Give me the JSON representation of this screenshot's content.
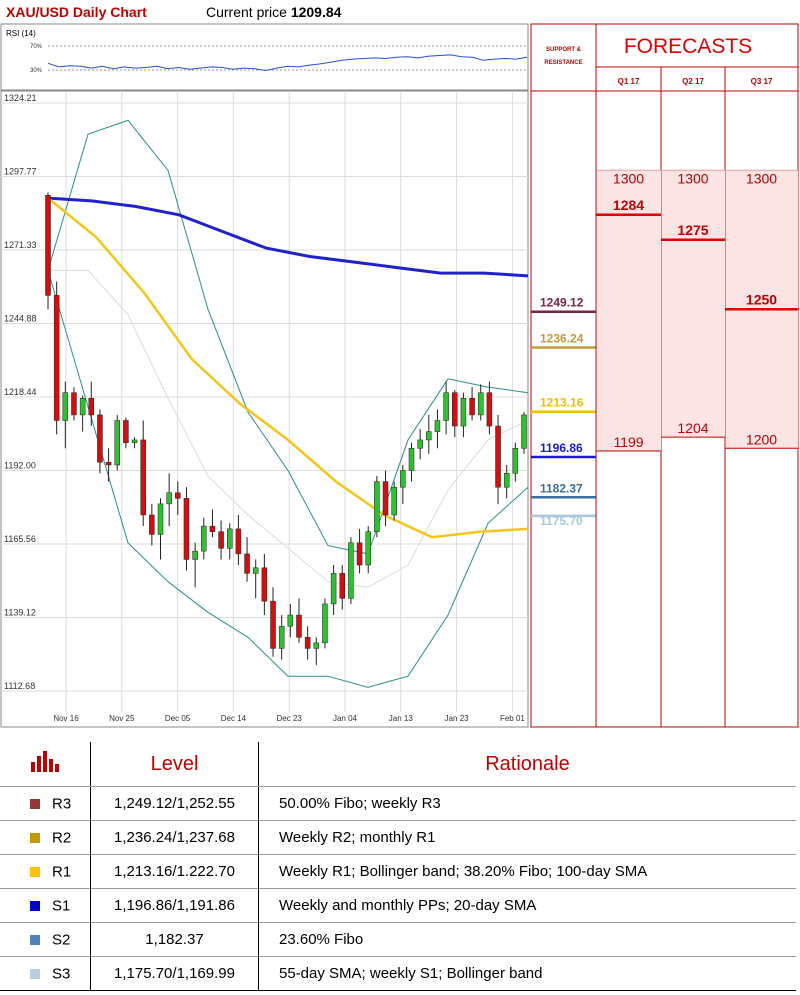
{
  "header": {
    "title": "XAU/USD Daily Chart",
    "price_label": "Current price",
    "price_value": "1209.84"
  },
  "rsi": {
    "label": "RSI (14)",
    "level_high": "70%",
    "level_low": "30%",
    "values": [
      58,
      52,
      54,
      53,
      50,
      53,
      49,
      52,
      50,
      51,
      53,
      49,
      51,
      48,
      50,
      52,
      51,
      48,
      50,
      49,
      46,
      50,
      53,
      52,
      55,
      57,
      60,
      63,
      65,
      66,
      67,
      66,
      68,
      69,
      67,
      70,
      71,
      72,
      69,
      68,
      63,
      65,
      66,
      65,
      68
    ]
  },
  "chart_data": {
    "type": "candlestick",
    "y_ticks": [
      "1324.21",
      "1297.77",
      "1271.33",
      "1244.88",
      "1218.44",
      "1192.00",
      "1165.56",
      "1139.12",
      "1112.68"
    ],
    "ylim": [
      1112.68,
      1324.21
    ],
    "x_ticks": [
      "Nov 16",
      "Nov 25",
      "Dec 05",
      "Dec 14",
      "Dec 23",
      "Jan 04",
      "Jan 13",
      "Jan 23",
      "Feb 01"
    ],
    "candles": [
      [
        1291,
        1292,
        1250,
        1255
      ],
      [
        1255,
        1260,
        1205,
        1210
      ],
      [
        1210,
        1224,
        1200,
        1220
      ],
      [
        1220,
        1222,
        1210,
        1212
      ],
      [
        1212,
        1219,
        1206,
        1218
      ],
      [
        1218,
        1224,
        1208,
        1212
      ],
      [
        1212,
        1214,
        1191,
        1195
      ],
      [
        1195,
        1200,
        1188,
        1194
      ],
      [
        1194,
        1212,
        1192,
        1210
      ],
      [
        1210,
        1211,
        1200,
        1202
      ],
      [
        1202,
        1204,
        1200,
        1203
      ],
      [
        1203,
        1210,
        1172,
        1176
      ],
      [
        1176,
        1180,
        1165,
        1169
      ],
      [
        1169,
        1182,
        1160,
        1180
      ],
      [
        1180,
        1191,
        1172,
        1184
      ],
      [
        1184,
        1188,
        1176,
        1182
      ],
      [
        1182,
        1186,
        1156,
        1160
      ],
      [
        1160,
        1166,
        1150,
        1163
      ],
      [
        1163,
        1175,
        1160,
        1172
      ],
      [
        1172,
        1178,
        1168,
        1170
      ],
      [
        1170,
        1174,
        1160,
        1164
      ],
      [
        1164,
        1173,
        1160,
        1171
      ],
      [
        1171,
        1176,
        1158,
        1162
      ],
      [
        1162,
        1168,
        1152,
        1155
      ],
      [
        1155,
        1160,
        1146,
        1157
      ],
      [
        1157,
        1162,
        1140,
        1145
      ],
      [
        1145,
        1150,
        1125,
        1128
      ],
      [
        1128,
        1140,
        1124,
        1136
      ],
      [
        1136,
        1144,
        1132,
        1140
      ],
      [
        1140,
        1146,
        1130,
        1132
      ],
      [
        1132,
        1136,
        1124,
        1128
      ],
      [
        1128,
        1132,
        1122,
        1130
      ],
      [
        1130,
        1146,
        1128,
        1144
      ],
      [
        1144,
        1158,
        1140,
        1155
      ],
      [
        1155,
        1158,
        1142,
        1146
      ],
      [
        1146,
        1168,
        1144,
        1166
      ],
      [
        1166,
        1171,
        1155,
        1158
      ],
      [
        1158,
        1172,
        1155,
        1170
      ],
      [
        1170,
        1190,
        1168,
        1188
      ],
      [
        1188,
        1192,
        1172,
        1176
      ],
      [
        1176,
        1188,
        1174,
        1186
      ],
      [
        1186,
        1194,
        1180,
        1192
      ],
      [
        1192,
        1202,
        1188,
        1200
      ],
      [
        1200,
        1207,
        1196,
        1203
      ],
      [
        1203,
        1212,
        1198,
        1206
      ],
      [
        1206,
        1214,
        1200,
        1210
      ],
      [
        1210,
        1224,
        1205,
        1220
      ],
      [
        1220,
        1221,
        1204,
        1208
      ],
      [
        1208,
        1220,
        1204,
        1218
      ],
      [
        1218,
        1222,
        1210,
        1212
      ],
      [
        1212,
        1223,
        1210,
        1220
      ],
      [
        1220,
        1224,
        1205,
        1208
      ],
      [
        1208,
        1212,
        1180,
        1186
      ],
      [
        1186,
        1194,
        1182,
        1191
      ],
      [
        1191,
        1202,
        1188,
        1200
      ],
      [
        1200,
        1213,
        1198,
        1212
      ]
    ],
    "ma200": [
      1290,
      1289,
      1287,
      1284,
      1278,
      1272,
      1269,
      1267,
      1265,
      1263,
      1263,
      1262
    ],
    "ma55": [
      1290,
      1276,
      1256,
      1232,
      1216,
      1203,
      1188,
      1176,
      1168,
      1170,
      1171
    ],
    "boll_upper": [
      1264,
      1313,
      1318,
      1300,
      1250,
      1213,
      1192,
      1165,
      1162,
      1203,
      1225,
      1222,
      1220
    ],
    "boll_mid": [
      1264,
      1264,
      1248,
      1218,
      1190,
      1176,
      1164,
      1152,
      1150,
      1158,
      1185,
      1203,
      1210
    ],
    "boll_lower": [
      1264,
      1215,
      1166,
      1152,
      1141,
      1132,
      1118,
      1118,
      1114,
      1118,
      1140,
      1173,
      1186
    ]
  },
  "sr_panel": {
    "header": "SUPPORT & RESISTANCE",
    "levels": [
      {
        "label": "1249.12",
        "color": "#7b2340"
      },
      {
        "label": "1236.24",
        "color": "#c59a3a"
      },
      {
        "label": "1213.16",
        "color": "#f0c000"
      },
      {
        "label": "1196.86",
        "color": "#1a1ad0"
      },
      {
        "label": "1182.37",
        "color": "#3a6f9f"
      },
      {
        "label": "1175.70",
        "color": "#a8c8dc"
      }
    ]
  },
  "forecasts": {
    "title": "FORECASTS",
    "columns": [
      {
        "label": "Q1 17",
        "high": "1300",
        "mid": "1284",
        "low": "1199"
      },
      {
        "label": "Q2 17",
        "high": "1300",
        "mid": "1275",
        "low": "1204"
      },
      {
        "label": "Q3 17",
        "high": "1300",
        "mid": "1250",
        "low": "1200"
      }
    ]
  },
  "table": {
    "headers": [
      "Level",
      "Rationale"
    ],
    "rows": [
      {
        "name": "R3",
        "level": "1,249.12/1,252.55",
        "rationale": "50.00% Fibo; weekly R3",
        "color": "#953735"
      },
      {
        "name": "R2",
        "level": "1,236.24/1,237.68",
        "rationale": "Weekly R2; monthly R1",
        "color": "#c59a00"
      },
      {
        "name": "R1",
        "level": "1,213.16/1.222.70",
        "rationale": "Weekly R1; Bollinger band; 38.20% Fibo; 100-day SMA",
        "color": "#ffc000"
      },
      {
        "name": "S1",
        "level": "1,196.86/1,191.86",
        "rationale": "Weekly and monthly PPs; 20-day SMA",
        "color": "#0000cc"
      },
      {
        "name": "S2",
        "level": "1,182.37",
        "rationale": "23.60% Fibo",
        "color": "#4f81bd"
      },
      {
        "name": "S3",
        "level": "1,175.70/1,169.99",
        "rationale": "55-day SMA; weekly S1; Bollinger band",
        "color": "#b9cde5"
      }
    ]
  }
}
